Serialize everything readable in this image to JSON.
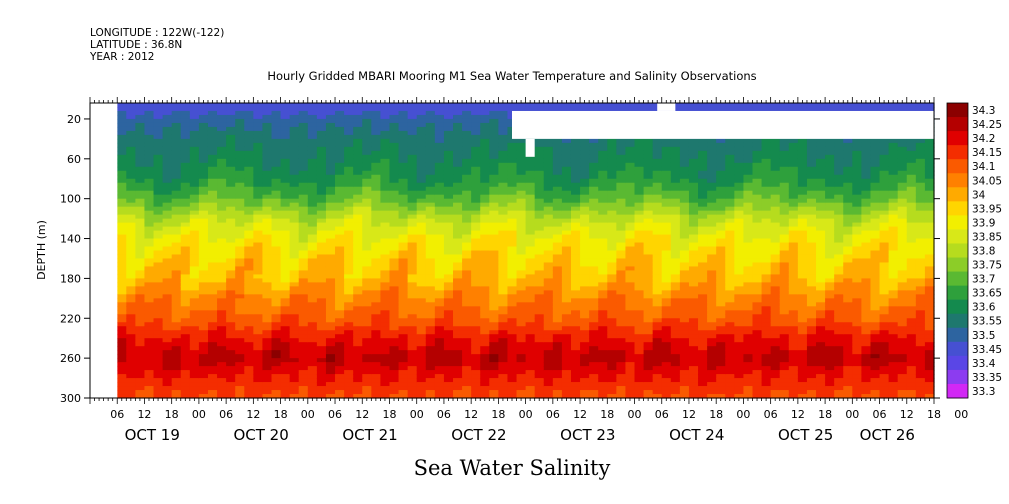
{
  "header": {
    "longitude": "LONGITUDE : 122W(-122)",
    "latitude": "LATITUDE : 36.8N",
    "year": "YEAR : 2012",
    "title": "Hourly Gridded MBARI Mooring M1 Sea Water Temperature and Salinity Observations"
  },
  "footer": {
    "variable_label": "Sea Water Salinity"
  },
  "chart_data": {
    "type": "heatmap",
    "title": "Hourly Gridded MBARI Mooring M1 Sea Water Temperature and Salinity Observations",
    "xlabel": "",
    "ylabel": "DEPTH (m)",
    "variable": "Sea Water Salinity",
    "x_range_hours": [
      0,
      186
    ],
    "y_range": [
      300,
      4
    ],
    "y_ticks": [
      20,
      60,
      100,
      140,
      180,
      220,
      260,
      300
    ],
    "hour_labels": [
      "06",
      "12",
      "18",
      "00",
      "06",
      "12",
      "18",
      "00",
      "06",
      "12",
      "18",
      "00",
      "06",
      "12",
      "18",
      "00",
      "06",
      "12",
      "18",
      "00",
      "06",
      "12",
      "18",
      "00",
      "06",
      "12",
      "18",
      "00",
      "06",
      "12",
      "18",
      "00"
    ],
    "date_labels": [
      {
        "label": "OCT 19",
        "hour": 6
      },
      {
        "label": "OCT 20",
        "hour": 30
      },
      {
        "label": "OCT 21",
        "hour": 54
      },
      {
        "label": "OCT 22",
        "hour": 78
      },
      {
        "label": "OCT 23",
        "hour": 102
      },
      {
        "label": "OCT 24",
        "hour": 126
      },
      {
        "label": "OCT 25",
        "hour": 150
      },
      {
        "label": "OCT 26",
        "hour": 168
      }
    ],
    "data_start_hour": 6,
    "missing_regions": [
      {
        "x": [
          0,
          6
        ],
        "depth": [
          4,
          300
        ]
      },
      {
        "x": [
          93,
          186
        ],
        "depth": [
          12,
          40
        ]
      },
      {
        "x": [
          125,
          129
        ],
        "depth": [
          4,
          12
        ]
      },
      {
        "x": [
          96,
          98
        ],
        "depth": [
          40,
          58
        ]
      }
    ],
    "colorbar": {
      "levels": [
        "34.3",
        "34.25",
        "34.2",
        "34.15",
        "34.1",
        "34.05",
        "34",
        "33.95",
        "33.9",
        "33.85",
        "33.8",
        "33.75",
        "33.7",
        "33.65",
        "33.6",
        "33.55",
        "33.5",
        "33.45",
        "33.4",
        "33.35",
        "33.3"
      ],
      "colors": [
        "#8b0000",
        "#b40000",
        "#e00000",
        "#f42d00",
        "#fa5a00",
        "#ff8000",
        "#ffaa00",
        "#ffd500",
        "#f2ef00",
        "#d8e818",
        "#b6dc1e",
        "#8ccd28",
        "#5ab932",
        "#2ea03c",
        "#148a4e",
        "#1e786e",
        "#2d64a0",
        "#4650d2",
        "#5a46e6",
        "#8c3cf0",
        "#d228f5"
      ]
    },
    "depth_profile": [
      {
        "depth": 10,
        "salinity": 33.45
      },
      {
        "depth": 20,
        "salinity": 33.5
      },
      {
        "depth": 40,
        "salinity": 33.55
      },
      {
        "depth": 60,
        "salinity": 33.58
      },
      {
        "depth": 80,
        "salinity": 33.62
      },
      {
        "depth": 100,
        "salinity": 33.7
      },
      {
        "depth": 120,
        "salinity": 33.82
      },
      {
        "depth": 140,
        "salinity": 33.9
      },
      {
        "depth": 160,
        "salinity": 33.95
      },
      {
        "depth": 180,
        "salinity": 33.98
      },
      {
        "depth": 200,
        "salinity": 34.05
      },
      {
        "depth": 220,
        "salinity": 34.1
      },
      {
        "depth": 240,
        "salinity": 34.18
      },
      {
        "depth": 260,
        "salinity": 34.24
      },
      {
        "depth": 280,
        "salinity": 34.17
      },
      {
        "depth": 300,
        "salinity": 34.12
      }
    ]
  }
}
